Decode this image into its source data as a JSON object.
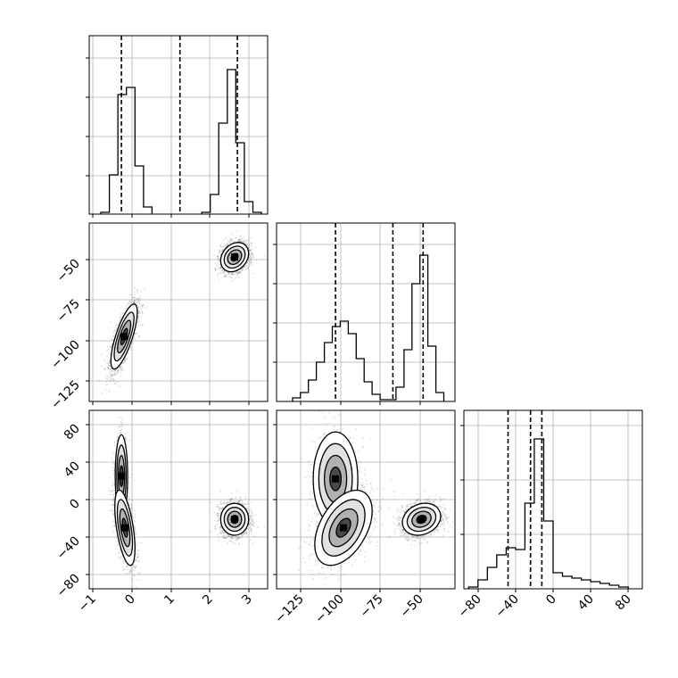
{
  "chart_data": [
    {
      "panel": "p1-marginal",
      "type": "histogram",
      "xlim": [
        -1.1,
        3.5
      ],
      "bins": [
        {
          "x0": -0.8,
          "x1": -0.58,
          "h": 0.01
        },
        {
          "x0": -0.58,
          "x1": -0.36,
          "h": 0.22
        },
        {
          "x0": -0.36,
          "x1": -0.14,
          "h": 0.67
        },
        {
          "x0": -0.14,
          "x1": 0.08,
          "h": 0.71
        },
        {
          "x0": 0.08,
          "x1": 0.3,
          "h": 0.27
        },
        {
          "x0": 0.3,
          "x1": 0.52,
          "h": 0.04
        },
        {
          "x0": 1.8,
          "x1": 2.02,
          "h": 0.01
        },
        {
          "x0": 2.02,
          "x1": 2.24,
          "h": 0.11
        },
        {
          "x0": 2.24,
          "x1": 2.46,
          "h": 0.51
        },
        {
          "x0": 2.46,
          "x1": 2.68,
          "h": 0.81
        },
        {
          "x0": 2.68,
          "x1": 2.9,
          "h": 0.4
        },
        {
          "x0": 2.9,
          "x1": 3.12,
          "h": 0.07
        },
        {
          "x0": 3.12,
          "x1": 3.34,
          "h": 0.01
        }
      ],
      "quantiles": [
        -0.27,
        1.24,
        2.72
      ],
      "x_ticks": [
        -1,
        0,
        1,
        2,
        3
      ]
    },
    {
      "panel": "p2-marginal",
      "type": "histogram",
      "xlim": [
        -140,
        -28
      ],
      "bins": [
        {
          "x0": -130,
          "x1": -125,
          "h": 0.02
        },
        {
          "x0": -125,
          "x1": -120,
          "h": 0.05
        },
        {
          "x0": -120,
          "x1": -115,
          "h": 0.12
        },
        {
          "x0": -115,
          "x1": -110,
          "h": 0.22
        },
        {
          "x0": -110,
          "x1": -105,
          "h": 0.33
        },
        {
          "x0": -105,
          "x1": -100,
          "h": 0.42
        },
        {
          "x0": -100,
          "x1": -95,
          "h": 0.45
        },
        {
          "x0": -95,
          "x1": -90,
          "h": 0.38
        },
        {
          "x0": -90,
          "x1": -85,
          "h": 0.24
        },
        {
          "x0": -85,
          "x1": -80,
          "h": 0.11
        },
        {
          "x0": -80,
          "x1": -75,
          "h": 0.04
        },
        {
          "x0": -75,
          "x1": -70,
          "h": 0.01
        },
        {
          "x0": -70,
          "x1": -65,
          "h": 0.01
        },
        {
          "x0": -65,
          "x1": -60,
          "h": 0.08
        },
        {
          "x0": -60,
          "x1": -55,
          "h": 0.29
        },
        {
          "x0": -55,
          "x1": -50,
          "h": 0.66
        },
        {
          "x0": -50,
          "x1": -45,
          "h": 0.82
        },
        {
          "x0": -45,
          "x1": -40,
          "h": 0.31
        },
        {
          "x0": -40,
          "x1": -35,
          "h": 0.05
        }
      ],
      "quantiles": [
        -103,
        -67,
        -48
      ],
      "x_ticks": [
        -125,
        -100,
        -75,
        -50
      ]
    },
    {
      "panel": "p3-marginal",
      "type": "histogram",
      "xlim": [
        -95,
        95
      ],
      "bins": [
        {
          "x0": -90,
          "x1": -80,
          "h": 0.01
        },
        {
          "x0": -80,
          "x1": -70,
          "h": 0.05
        },
        {
          "x0": -70,
          "x1": -60,
          "h": 0.12
        },
        {
          "x0": -60,
          "x1": -50,
          "h": 0.19
        },
        {
          "x0": -50,
          "x1": -40,
          "h": 0.23
        },
        {
          "x0": -40,
          "x1": -30,
          "h": 0.22
        },
        {
          "x0": -30,
          "x1": -20,
          "h": 0.48
        },
        {
          "x0": -20,
          "x1": -10,
          "h": 0.84
        },
        {
          "x0": -10,
          "x1": 0,
          "h": 0.38
        },
        {
          "x0": 0,
          "x1": 10,
          "h": 0.09
        },
        {
          "x0": 10,
          "x1": 20,
          "h": 0.07
        },
        {
          "x0": 20,
          "x1": 30,
          "h": 0.06
        },
        {
          "x0": 30,
          "x1": 40,
          "h": 0.05
        },
        {
          "x0": 40,
          "x1": 50,
          "h": 0.04
        },
        {
          "x0": 50,
          "x1": 60,
          "h": 0.03
        },
        {
          "x0": 60,
          "x1": 70,
          "h": 0.02
        },
        {
          "x0": 70,
          "x1": 80,
          "h": 0.01
        }
      ],
      "quantiles": [
        -48,
        -24,
        -12
      ],
      "x_ticks": [
        -80,
        -40,
        0,
        40,
        80
      ]
    },
    {
      "panel": "p1-vs-p2",
      "type": "scatter",
      "xlim": [
        -1.1,
        3.5
      ],
      "ylim": [
        -138,
        -28
      ],
      "clusters": [
        {
          "mx": -0.2,
          "my": -98,
          "sx": 0.17,
          "sy": 10,
          "rho": 0.75,
          "n": 2200
        },
        {
          "mx": 2.65,
          "my": -49,
          "sx": 0.18,
          "sy": 4.5,
          "rho": 0.25,
          "n": 2200
        }
      ],
      "y_ticks": [
        -125,
        -100,
        -75,
        -50
      ]
    },
    {
      "panel": "p1-vs-p3",
      "type": "scatter",
      "xlim": [
        -1.1,
        3.5
      ],
      "ylim": [
        -95,
        95
      ],
      "clusters": [
        {
          "mx": -0.27,
          "my": 25,
          "sx": 0.08,
          "sy": 22,
          "rho": 0.0,
          "n": 700
        },
        {
          "mx": -0.18,
          "my": -30,
          "sx": 0.13,
          "sy": 20,
          "rho": -0.55,
          "n": 1700
        },
        {
          "mx": 2.65,
          "my": -21,
          "sx": 0.18,
          "sy": 8.5,
          "rho": 0.0,
          "n": 2200
        }
      ],
      "y_ticks": [
        -80,
        -40,
        0,
        40,
        80
      ],
      "x_ticks": [
        -1,
        0,
        1,
        2,
        3
      ]
    },
    {
      "panel": "p2-vs-p3",
      "type": "scatter",
      "xlim": [
        -140,
        -28
      ],
      "ylim": [
        -95,
        95
      ],
      "clusters": [
        {
          "mx": -103,
          "my": 22,
          "sx": 7,
          "sy": 25,
          "rho": 0.0,
          "n": 900
        },
        {
          "mx": -98,
          "my": -30,
          "sx": 9,
          "sy": 20,
          "rho": 0.45,
          "n": 1500
        },
        {
          "mx": -49,
          "my": -21,
          "sx": 6,
          "sy": 8.5,
          "rho": 0.2,
          "n": 2200
        }
      ],
      "x_ticks": [
        -125,
        -100,
        -75,
        -50
      ]
    }
  ]
}
